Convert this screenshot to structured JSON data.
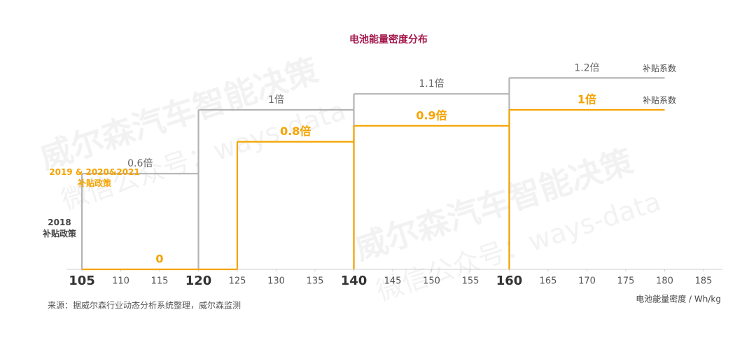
{
  "chart_data": {
    "type": "step",
    "title": "电池能量密度分布",
    "xlabel": "电池能量密度 / Wh/kg",
    "source": "来源：据威尔森行业动态分析系统整理，威尔森监测",
    "watermark": [
      "威尔森汽车智能决策",
      "微信公众号：ways-data"
    ],
    "xlim": [
      105,
      185
    ],
    "xticks": [
      105,
      110,
      115,
      120,
      125,
      130,
      135,
      140,
      145,
      150,
      155,
      160,
      165,
      170,
      175,
      180,
      185
    ],
    "ylim": [
      0,
      1.25
    ],
    "series": [
      {
        "name": "2018\n补贴政策",
        "color": "#b4b4b4",
        "annotation": "补贴系数",
        "x_start": [
          105,
          120,
          140,
          160
        ],
        "x_end": [
          120,
          140,
          160,
          180
        ],
        "values": [
          0.6,
          1,
          1.1,
          1.2
        ],
        "value_labels": [
          "0.6倍",
          "1倍",
          "1.1倍",
          "1.2倍"
        ]
      },
      {
        "name": "2019 & 2020&2021\n补贴政策",
        "color": "#f5a300",
        "annotation": "补贴系数",
        "x_start": [
          105,
          125,
          140,
          160
        ],
        "x_end": [
          125,
          140,
          160,
          180
        ],
        "values": [
          0,
          0.8,
          0.9,
          1
        ],
        "value_labels": [
          "0",
          "0.8倍",
          "0.9倍",
          "1倍"
        ]
      }
    ]
  }
}
